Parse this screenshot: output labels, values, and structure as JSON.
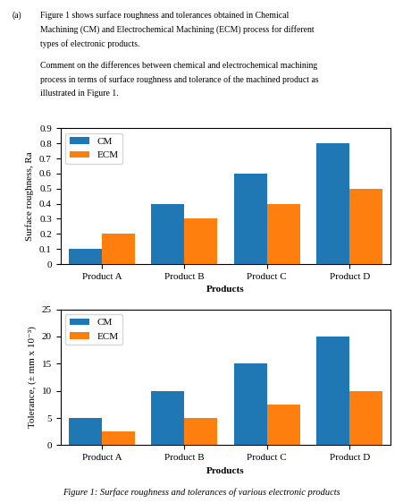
{
  "header": "(a)",
  "paragraphs": [
    [
      "Figure 1 shows surface roughness and tolerances obtained in Chemical",
      "Machining (CM) and Electrochemical Machining (ECM) process for different",
      "types of electronic products."
    ],
    [
      "Comment on the differences between chemical and electrochemical machining",
      "process in terms of surface roughness and tolerance of the machined product as",
      "illustrated in Figure 1."
    ]
  ],
  "caption": "Figure 1: Surface roughness and tolerances of various electronic products",
  "chart_data": [
    {
      "type": "bar",
      "categories": [
        "Product A",
        "Product B",
        "Product C",
        "Product D"
      ],
      "series": [
        {
          "name": "CM",
          "values": [
            0.1,
            0.4,
            0.6,
            0.8
          ]
        },
        {
          "name": "ECM",
          "values": [
            0.2,
            0.3,
            0.4,
            0.5
          ]
        }
      ],
      "xlabel": "Products",
      "ylabel": "Surface roughness, Ra",
      "ylim": [
        0,
        0.9
      ],
      "yticks": [
        0,
        0.1,
        0.2,
        0.3,
        0.4,
        0.5,
        0.6,
        0.7,
        0.8,
        0.9
      ],
      "legend": "upper left"
    },
    {
      "type": "bar",
      "categories": [
        "Product A",
        "Product B",
        "Product C",
        "Product D"
      ],
      "series": [
        {
          "name": "CM",
          "values": [
            5,
            10,
            15,
            20
          ]
        },
        {
          "name": "ECM",
          "values": [
            2.5,
            5,
            7.5,
            10
          ]
        }
      ],
      "xlabel": "Products",
      "ylabel": "Tolerance, (± mm x 10⁻³)",
      "ylim": [
        0,
        25
      ],
      "yticks": [
        0,
        5,
        10,
        15,
        20,
        25
      ],
      "legend": "upper left"
    }
  ]
}
